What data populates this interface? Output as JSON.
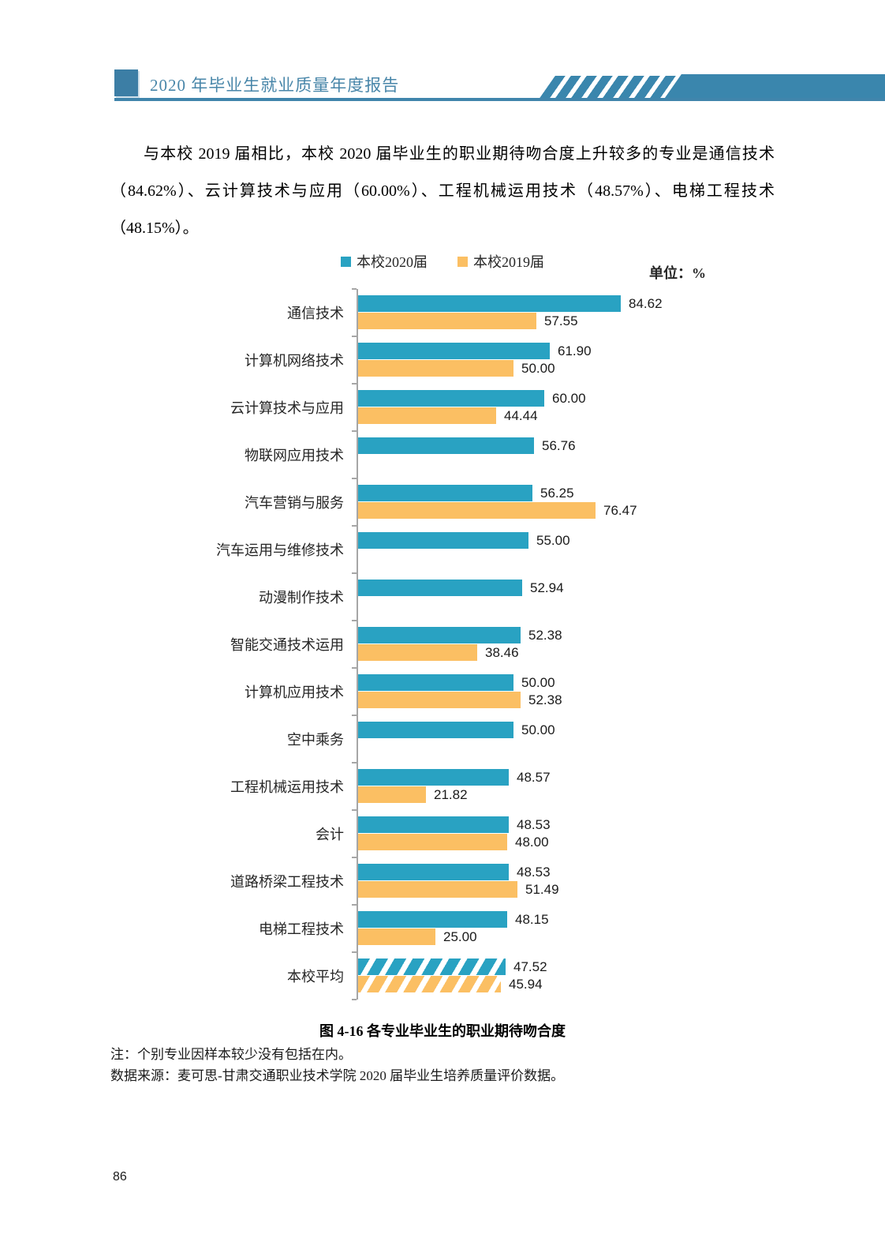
{
  "header": {
    "title": "2020 年毕业生就业质量年度报告"
  },
  "paragraph": "与本校 2019 届相比，本校 2020 届毕业生的职业期待吻合度上升较多的专业是通信技术（84.62%）、云计算技术与应用（60.00%）、工程机械运用技术（48.57%）、电梯工程技术（48.15%）。",
  "chart_data": {
    "type": "bar",
    "orientation": "horizontal",
    "unit_label": "单位：%",
    "legend_position": "top",
    "xlim": [
      0,
      90
    ],
    "grid": false,
    "series_meta": [
      {
        "name": "本校2020届",
        "color": "#29A2C2"
      },
      {
        "name": "本校2019届",
        "color": "#FBBF63"
      }
    ],
    "categories": [
      "通信技术",
      "计算机网络技术",
      "云计算技术与应用",
      "物联网应用技术",
      "汽车营销与服务",
      "汽车运用与维修技术",
      "动漫制作技术",
      "智能交通技术运用",
      "计算机应用技术",
      "空中乘务",
      "工程机械运用技术",
      "会计",
      "道路桥梁工程技术",
      "电梯工程技术",
      "本校平均"
    ],
    "series": [
      {
        "name": "本校2020届",
        "values": [
          84.62,
          61.9,
          60.0,
          56.76,
          56.25,
          55.0,
          52.94,
          52.38,
          50.0,
          50.0,
          48.57,
          48.53,
          48.53,
          48.15,
          47.52
        ]
      },
      {
        "name": "本校2019届",
        "values": [
          57.55,
          50.0,
          44.44,
          null,
          76.47,
          null,
          null,
          38.46,
          52.38,
          null,
          21.82,
          48.0,
          51.49,
          25.0,
          45.94
        ]
      }
    ],
    "hatched_category_index": 14
  },
  "caption": "图 4-16 各专业毕业生的职业期待吻合度",
  "notes": [
    "注：个别专业因样本较少没有包括在内。",
    "数据来源：麦可思-甘肃交通职业技术学院 2020 届毕业生培养质量评价数据。"
  ],
  "page_number": "86"
}
